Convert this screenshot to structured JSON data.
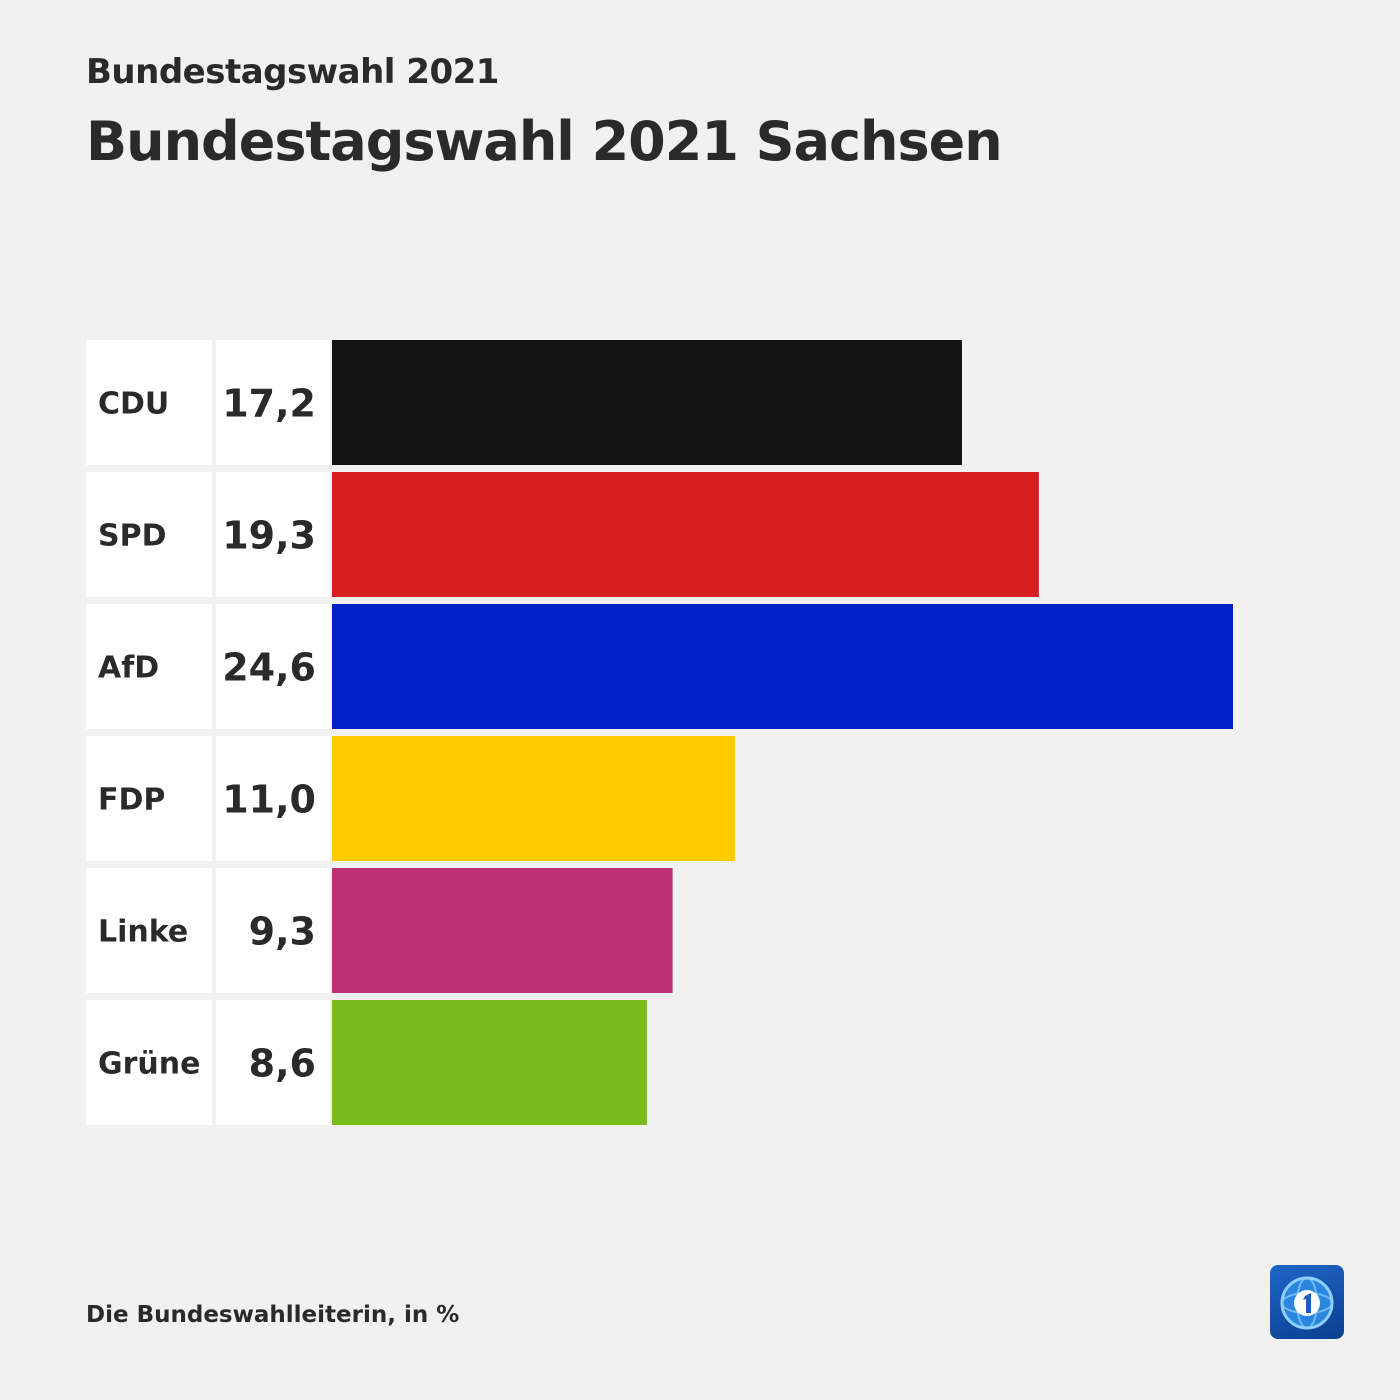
{
  "kicker": "Bundestagswahl 2021",
  "title": "Bundestagswahl 2021 Sachsen",
  "source": "Die Bundeswahlleiterin, in %",
  "logo_icon": "tagesschau-logo-icon",
  "chart_data": {
    "type": "bar",
    "orientation": "horizontal",
    "title": "Bundestagswahl 2021 Sachsen",
    "categories": [
      "CDU",
      "SPD",
      "AfD",
      "FDP",
      "Linke",
      "Grüne"
    ],
    "values": [
      17.2,
      19.3,
      24.6,
      11.0,
      9.3,
      8.6
    ],
    "value_labels": [
      "17,2",
      "19,3",
      "24,6",
      "11,0",
      "9,3",
      "8,6"
    ],
    "colors": [
      "#131313",
      "#d81f1f",
      "#0021c8",
      "#ffcc00",
      "#be3075",
      "#78bc1b"
    ],
    "unit": "%",
    "xlim": [
      0,
      24.6
    ],
    "grid": false,
    "legend": "none"
  }
}
